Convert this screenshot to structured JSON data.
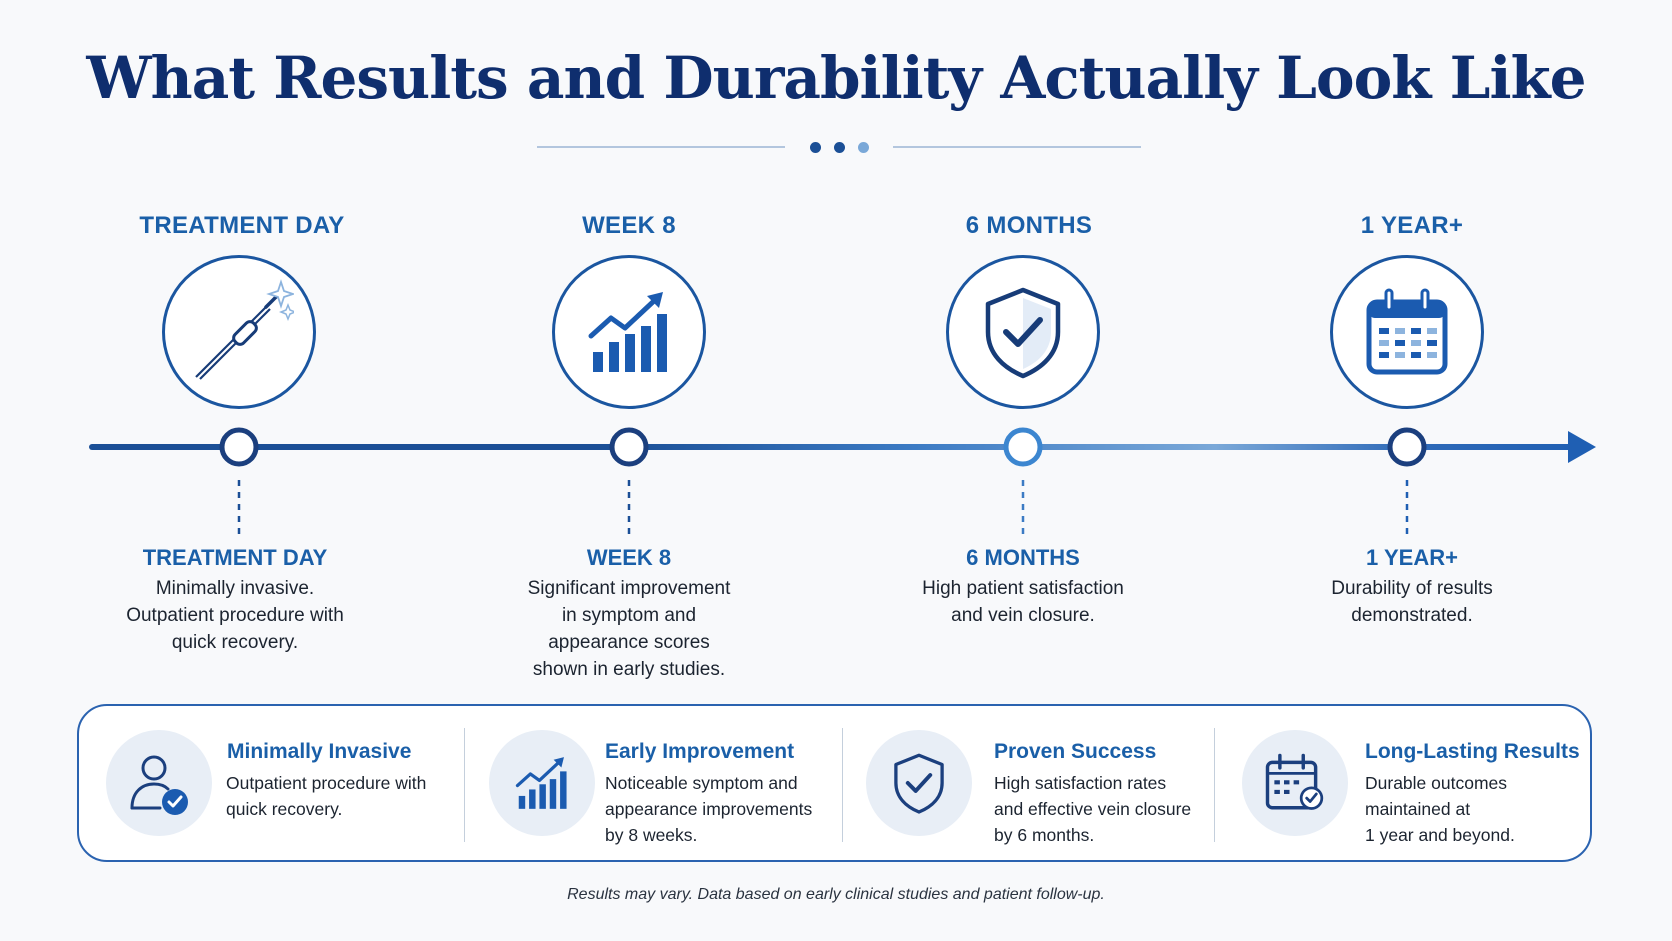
{
  "title": "What Results and Durability Actually Look Like",
  "colors": {
    "navy": "#0f2e6e",
    "blue": "#1a5fa8",
    "line_dark": "#1b4f96",
    "line_light": "#7aa8d8",
    "icon_bg": "#e8eef6"
  },
  "timeline": {
    "stages": [
      {
        "label": "TREATMENT DAY",
        "icon": "catheter-icon",
        "sub_label": "TREATMENT DAY",
        "description": [
          "Minimally invasive.",
          "Outpatient procedure with",
          "quick recovery."
        ]
      },
      {
        "label": "WEEK 8",
        "icon": "growth-chart-icon",
        "sub_label": "WEEK 8",
        "description": [
          "Significant improvement",
          "in symptom and",
          "appearance scores",
          "shown in early studies."
        ]
      },
      {
        "label": "6 MONTHS",
        "icon": "shield-check-icon",
        "sub_label": "6 MONTHS",
        "description": [
          "High patient satisfaction",
          "and vein closure."
        ]
      },
      {
        "label": "1 YEAR+",
        "icon": "calendar-icon",
        "sub_label": "1 YEAR+",
        "description": [
          "Durability of results",
          "demonstrated."
        ]
      }
    ]
  },
  "summary": [
    {
      "icon": "user-check-icon",
      "title": "Minimally Invasive",
      "description": [
        "Outpatient procedure with",
        "quick recovery."
      ]
    },
    {
      "icon": "growth-chart-icon",
      "title": "Early Improvement",
      "description": [
        "Noticeable symptom and",
        "appearance improvements",
        "by 8 weeks."
      ]
    },
    {
      "icon": "shield-check-icon",
      "title": "Proven Success",
      "description": [
        "High satisfaction rates",
        "and effective vein closure",
        "by 6 months."
      ]
    },
    {
      "icon": "calendar-check-icon",
      "title": "Long-Lasting Results",
      "description": [
        "Durable outcomes",
        "maintained at",
        "1 year and beyond."
      ]
    }
  ],
  "disclaimer": "Results may vary. Data based on early clinical studies and patient follow-up."
}
